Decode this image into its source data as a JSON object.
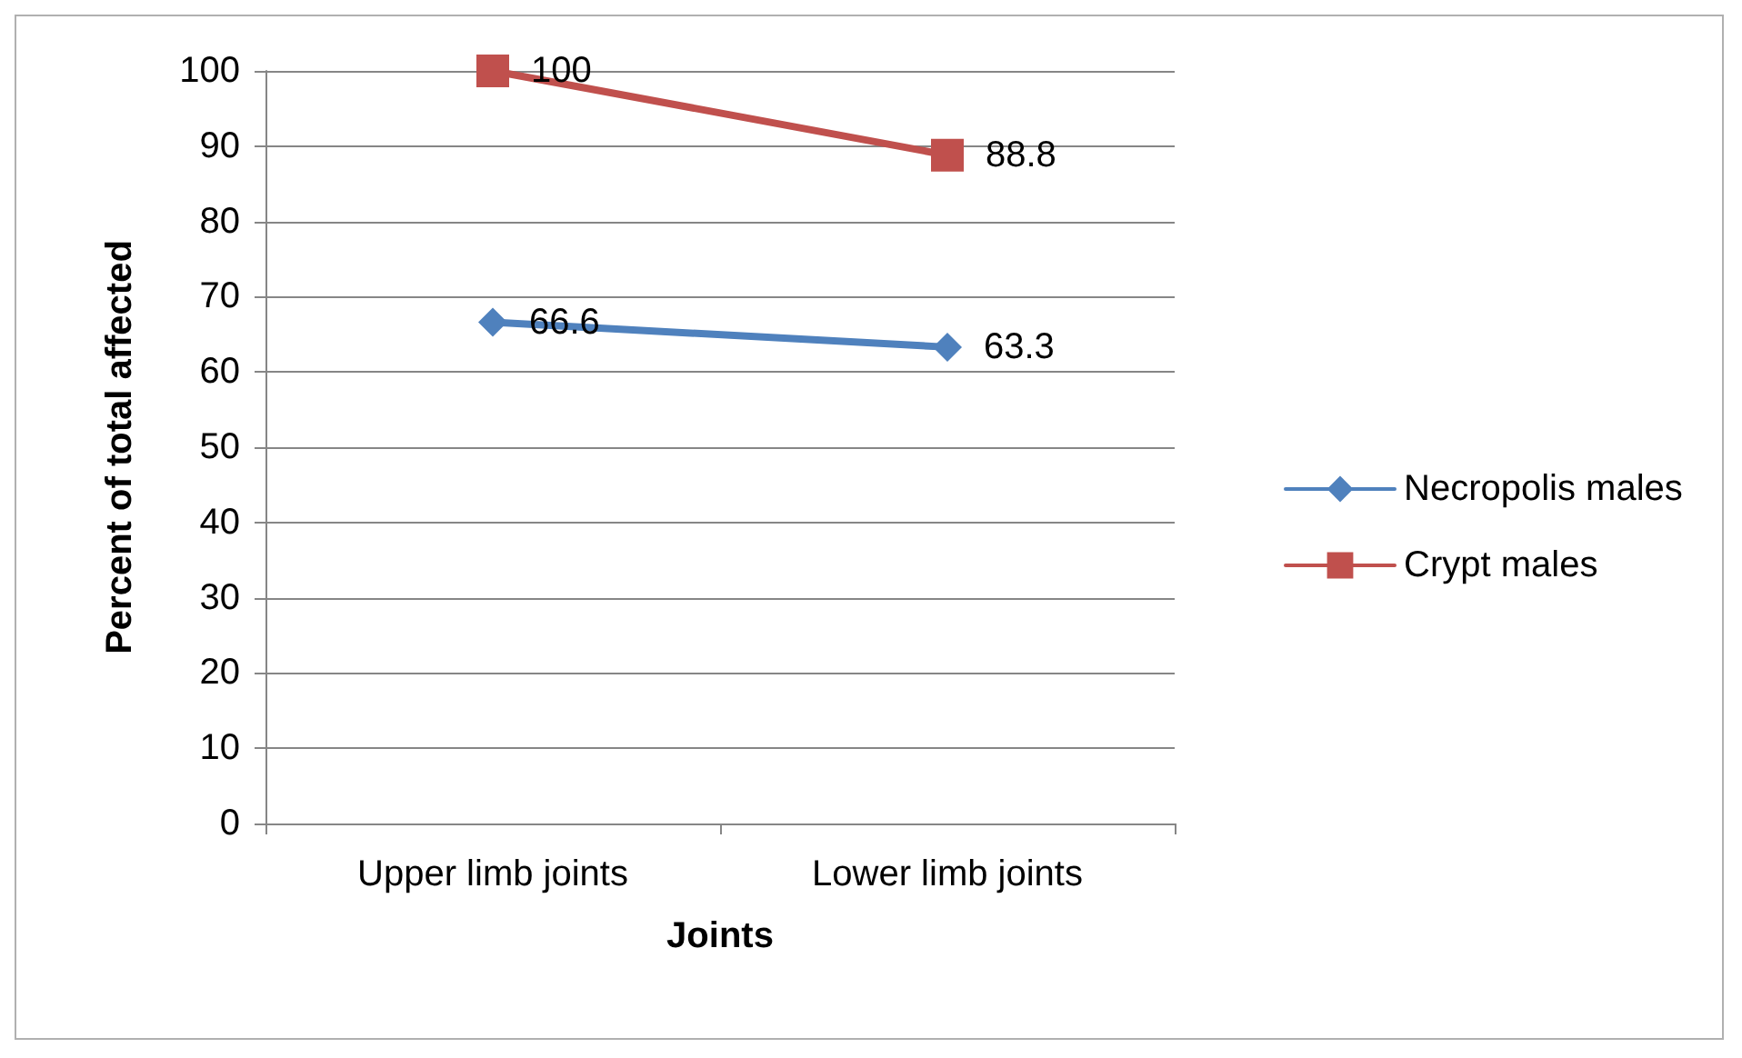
{
  "chart_data": {
    "type": "line",
    "xlabel": "Joints",
    "ylabel": "Percent of total affected",
    "categories": [
      "Upper limb joints",
      "Lower limb joints"
    ],
    "series": [
      {
        "name": "Necropolis males",
        "color": "#4f81bd",
        "marker": "diamond",
        "values": [
          66.6,
          63.3
        ]
      },
      {
        "name": "Crypt males",
        "color": "#c0504d",
        "marker": "square",
        "values": [
          100,
          88.8
        ]
      }
    ],
    "ylim": [
      0,
      100
    ],
    "yticks": [
      0,
      10,
      20,
      30,
      40,
      50,
      60,
      70,
      80,
      90,
      100
    ],
    "grid": "y",
    "legend": "right",
    "data_labels": true
  }
}
